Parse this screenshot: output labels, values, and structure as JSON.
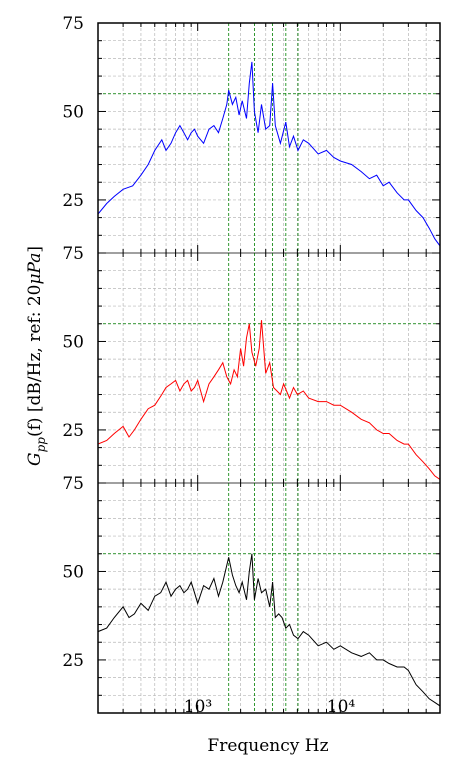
{
  "chart_data": {
    "type": "line",
    "xlabel": "Frequency Hz",
    "ylabel": "G_pp(f) [dB/Hz, ref: 20μPa]",
    "ylabel_parts": {
      "symbol": "G",
      "subscript": "pp",
      "argument": "(f)",
      "rest": " [dB/Hz, ref: 20",
      "mu": "μ",
      "unit": "Pa",
      "close": "]"
    },
    "xscale": "log",
    "xlim": [
      200,
      50000
    ],
    "x_tick_labels": [
      "10³",
      "10⁴"
    ],
    "x_ticks": [
      1000,
      10000
    ],
    "panel_ylim": [
      10,
      75
    ],
    "y_tick_labels": [
      "75",
      "50",
      "25"
    ],
    "y_ticks": [
      75,
      50,
      25
    ],
    "grid": true,
    "green_vertical_lines_hz": [
      1650,
      2500,
      3350,
      4150,
      5050
    ],
    "green_horizontal_line_db": 55,
    "panels": [
      {
        "color": "#0000ff",
        "points": [
          [
            200,
            21
          ],
          [
            230,
            24
          ],
          [
            260,
            26
          ],
          [
            300,
            28
          ],
          [
            350,
            29
          ],
          [
            400,
            32
          ],
          [
            450,
            35
          ],
          [
            500,
            39
          ],
          [
            560,
            42
          ],
          [
            600,
            39
          ],
          [
            650,
            41
          ],
          [
            700,
            44
          ],
          [
            750,
            46
          ],
          [
            800,
            44
          ],
          [
            850,
            42
          ],
          [
            900,
            44
          ],
          [
            950,
            45
          ],
          [
            1000,
            43
          ],
          [
            1100,
            41
          ],
          [
            1200,
            45
          ],
          [
            1300,
            46
          ],
          [
            1400,
            44
          ],
          [
            1500,
            48
          ],
          [
            1600,
            52
          ],
          [
            1650,
            56
          ],
          [
            1750,
            52
          ],
          [
            1850,
            54
          ],
          [
            1950,
            49
          ],
          [
            2050,
            53
          ],
          [
            2200,
            48
          ],
          [
            2300,
            58
          ],
          [
            2400,
            64
          ],
          [
            2500,
            50
          ],
          [
            2650,
            44
          ],
          [
            2800,
            52
          ],
          [
            3000,
            45
          ],
          [
            3200,
            46
          ],
          [
            3350,
            58
          ],
          [
            3500,
            46
          ],
          [
            3800,
            41
          ],
          [
            4150,
            47
          ],
          [
            4400,
            40
          ],
          [
            4700,
            43
          ],
          [
            5050,
            39
          ],
          [
            5500,
            42
          ],
          [
            6000,
            41
          ],
          [
            7000,
            38
          ],
          [
            8000,
            39
          ],
          [
            9000,
            37
          ],
          [
            10000,
            36
          ],
          [
            12000,
            35
          ],
          [
            14000,
            33
          ],
          [
            16000,
            31
          ],
          [
            18000,
            32
          ],
          [
            20000,
            29
          ],
          [
            22000,
            30
          ],
          [
            25000,
            27
          ],
          [
            28000,
            25
          ],
          [
            30000,
            25
          ],
          [
            34000,
            22
          ],
          [
            38000,
            20
          ],
          [
            42000,
            17
          ],
          [
            46000,
            14
          ],
          [
            50000,
            12
          ]
        ]
      },
      {
        "color": "#ff0000",
        "points": [
          [
            200,
            21
          ],
          [
            230,
            22
          ],
          [
            260,
            24
          ],
          [
            300,
            26
          ],
          [
            330,
            23
          ],
          [
            360,
            25
          ],
          [
            400,
            28
          ],
          [
            450,
            31
          ],
          [
            500,
            32
          ],
          [
            560,
            35
          ],
          [
            600,
            37
          ],
          [
            650,
            38
          ],
          [
            700,
            39
          ],
          [
            750,
            36
          ],
          [
            800,
            38
          ],
          [
            850,
            39
          ],
          [
            900,
            36
          ],
          [
            950,
            37
          ],
          [
            1000,
            39
          ],
          [
            1100,
            33
          ],
          [
            1200,
            38
          ],
          [
            1300,
            40
          ],
          [
            1400,
            42
          ],
          [
            1500,
            44
          ],
          [
            1600,
            40
          ],
          [
            1700,
            38
          ],
          [
            1800,
            42
          ],
          [
            1900,
            40
          ],
          [
            2000,
            48
          ],
          [
            2100,
            43
          ],
          [
            2200,
            51
          ],
          [
            2300,
            55
          ],
          [
            2400,
            47
          ],
          [
            2550,
            43
          ],
          [
            2700,
            48
          ],
          [
            2800,
            56
          ],
          [
            3000,
            41
          ],
          [
            3200,
            44
          ],
          [
            3400,
            37
          ],
          [
            3600,
            36
          ],
          [
            3800,
            35
          ],
          [
            4000,
            38
          ],
          [
            4400,
            34
          ],
          [
            4700,
            37
          ],
          [
            5000,
            35
          ],
          [
            5500,
            36
          ],
          [
            6000,
            34
          ],
          [
            7000,
            33
          ],
          [
            8000,
            33
          ],
          [
            9000,
            32
          ],
          [
            10000,
            32
          ],
          [
            12000,
            30
          ],
          [
            14000,
            28
          ],
          [
            16000,
            27
          ],
          [
            18000,
            25
          ],
          [
            20000,
            24
          ],
          [
            22000,
            24
          ],
          [
            25000,
            22
          ],
          [
            28000,
            21
          ],
          [
            30000,
            21
          ],
          [
            34000,
            18
          ],
          [
            38000,
            16
          ],
          [
            42000,
            14
          ],
          [
            46000,
            12
          ],
          [
            50000,
            11
          ]
        ]
      },
      {
        "color": "#000000",
        "points": [
          [
            200,
            33
          ],
          [
            230,
            34
          ],
          [
            260,
            37
          ],
          [
            300,
            40
          ],
          [
            330,
            37
          ],
          [
            360,
            38
          ],
          [
            400,
            41
          ],
          [
            450,
            39
          ],
          [
            500,
            43
          ],
          [
            550,
            44
          ],
          [
            600,
            47
          ],
          [
            650,
            43
          ],
          [
            700,
            45
          ],
          [
            750,
            46
          ],
          [
            800,
            44
          ],
          [
            850,
            45
          ],
          [
            900,
            47
          ],
          [
            950,
            44
          ],
          [
            1000,
            41
          ],
          [
            1100,
            46
          ],
          [
            1200,
            45
          ],
          [
            1300,
            48
          ],
          [
            1400,
            43
          ],
          [
            1500,
            47
          ],
          [
            1650,
            54
          ],
          [
            1750,
            49
          ],
          [
            1850,
            46
          ],
          [
            1950,
            44
          ],
          [
            2050,
            47
          ],
          [
            2200,
            42
          ],
          [
            2300,
            50
          ],
          [
            2400,
            55
          ],
          [
            2500,
            42
          ],
          [
            2650,
            48
          ],
          [
            2800,
            44
          ],
          [
            3000,
            45
          ],
          [
            3200,
            40
          ],
          [
            3350,
            47
          ],
          [
            3500,
            37
          ],
          [
            3700,
            38
          ],
          [
            3900,
            37
          ],
          [
            4150,
            34
          ],
          [
            4400,
            35
          ],
          [
            4700,
            32
          ],
          [
            5050,
            31
          ],
          [
            5500,
            33
          ],
          [
            6000,
            32
          ],
          [
            7000,
            29
          ],
          [
            8000,
            30
          ],
          [
            9000,
            28
          ],
          [
            10000,
            29
          ],
          [
            12000,
            27
          ],
          [
            14000,
            26
          ],
          [
            16000,
            27
          ],
          [
            18000,
            25
          ],
          [
            20000,
            25
          ],
          [
            22000,
            24
          ],
          [
            25000,
            23
          ],
          [
            28000,
            23
          ],
          [
            30000,
            22
          ],
          [
            34000,
            18
          ],
          [
            38000,
            16
          ],
          [
            42000,
            14
          ],
          [
            46000,
            13
          ],
          [
            50000,
            12
          ]
        ]
      }
    ]
  }
}
